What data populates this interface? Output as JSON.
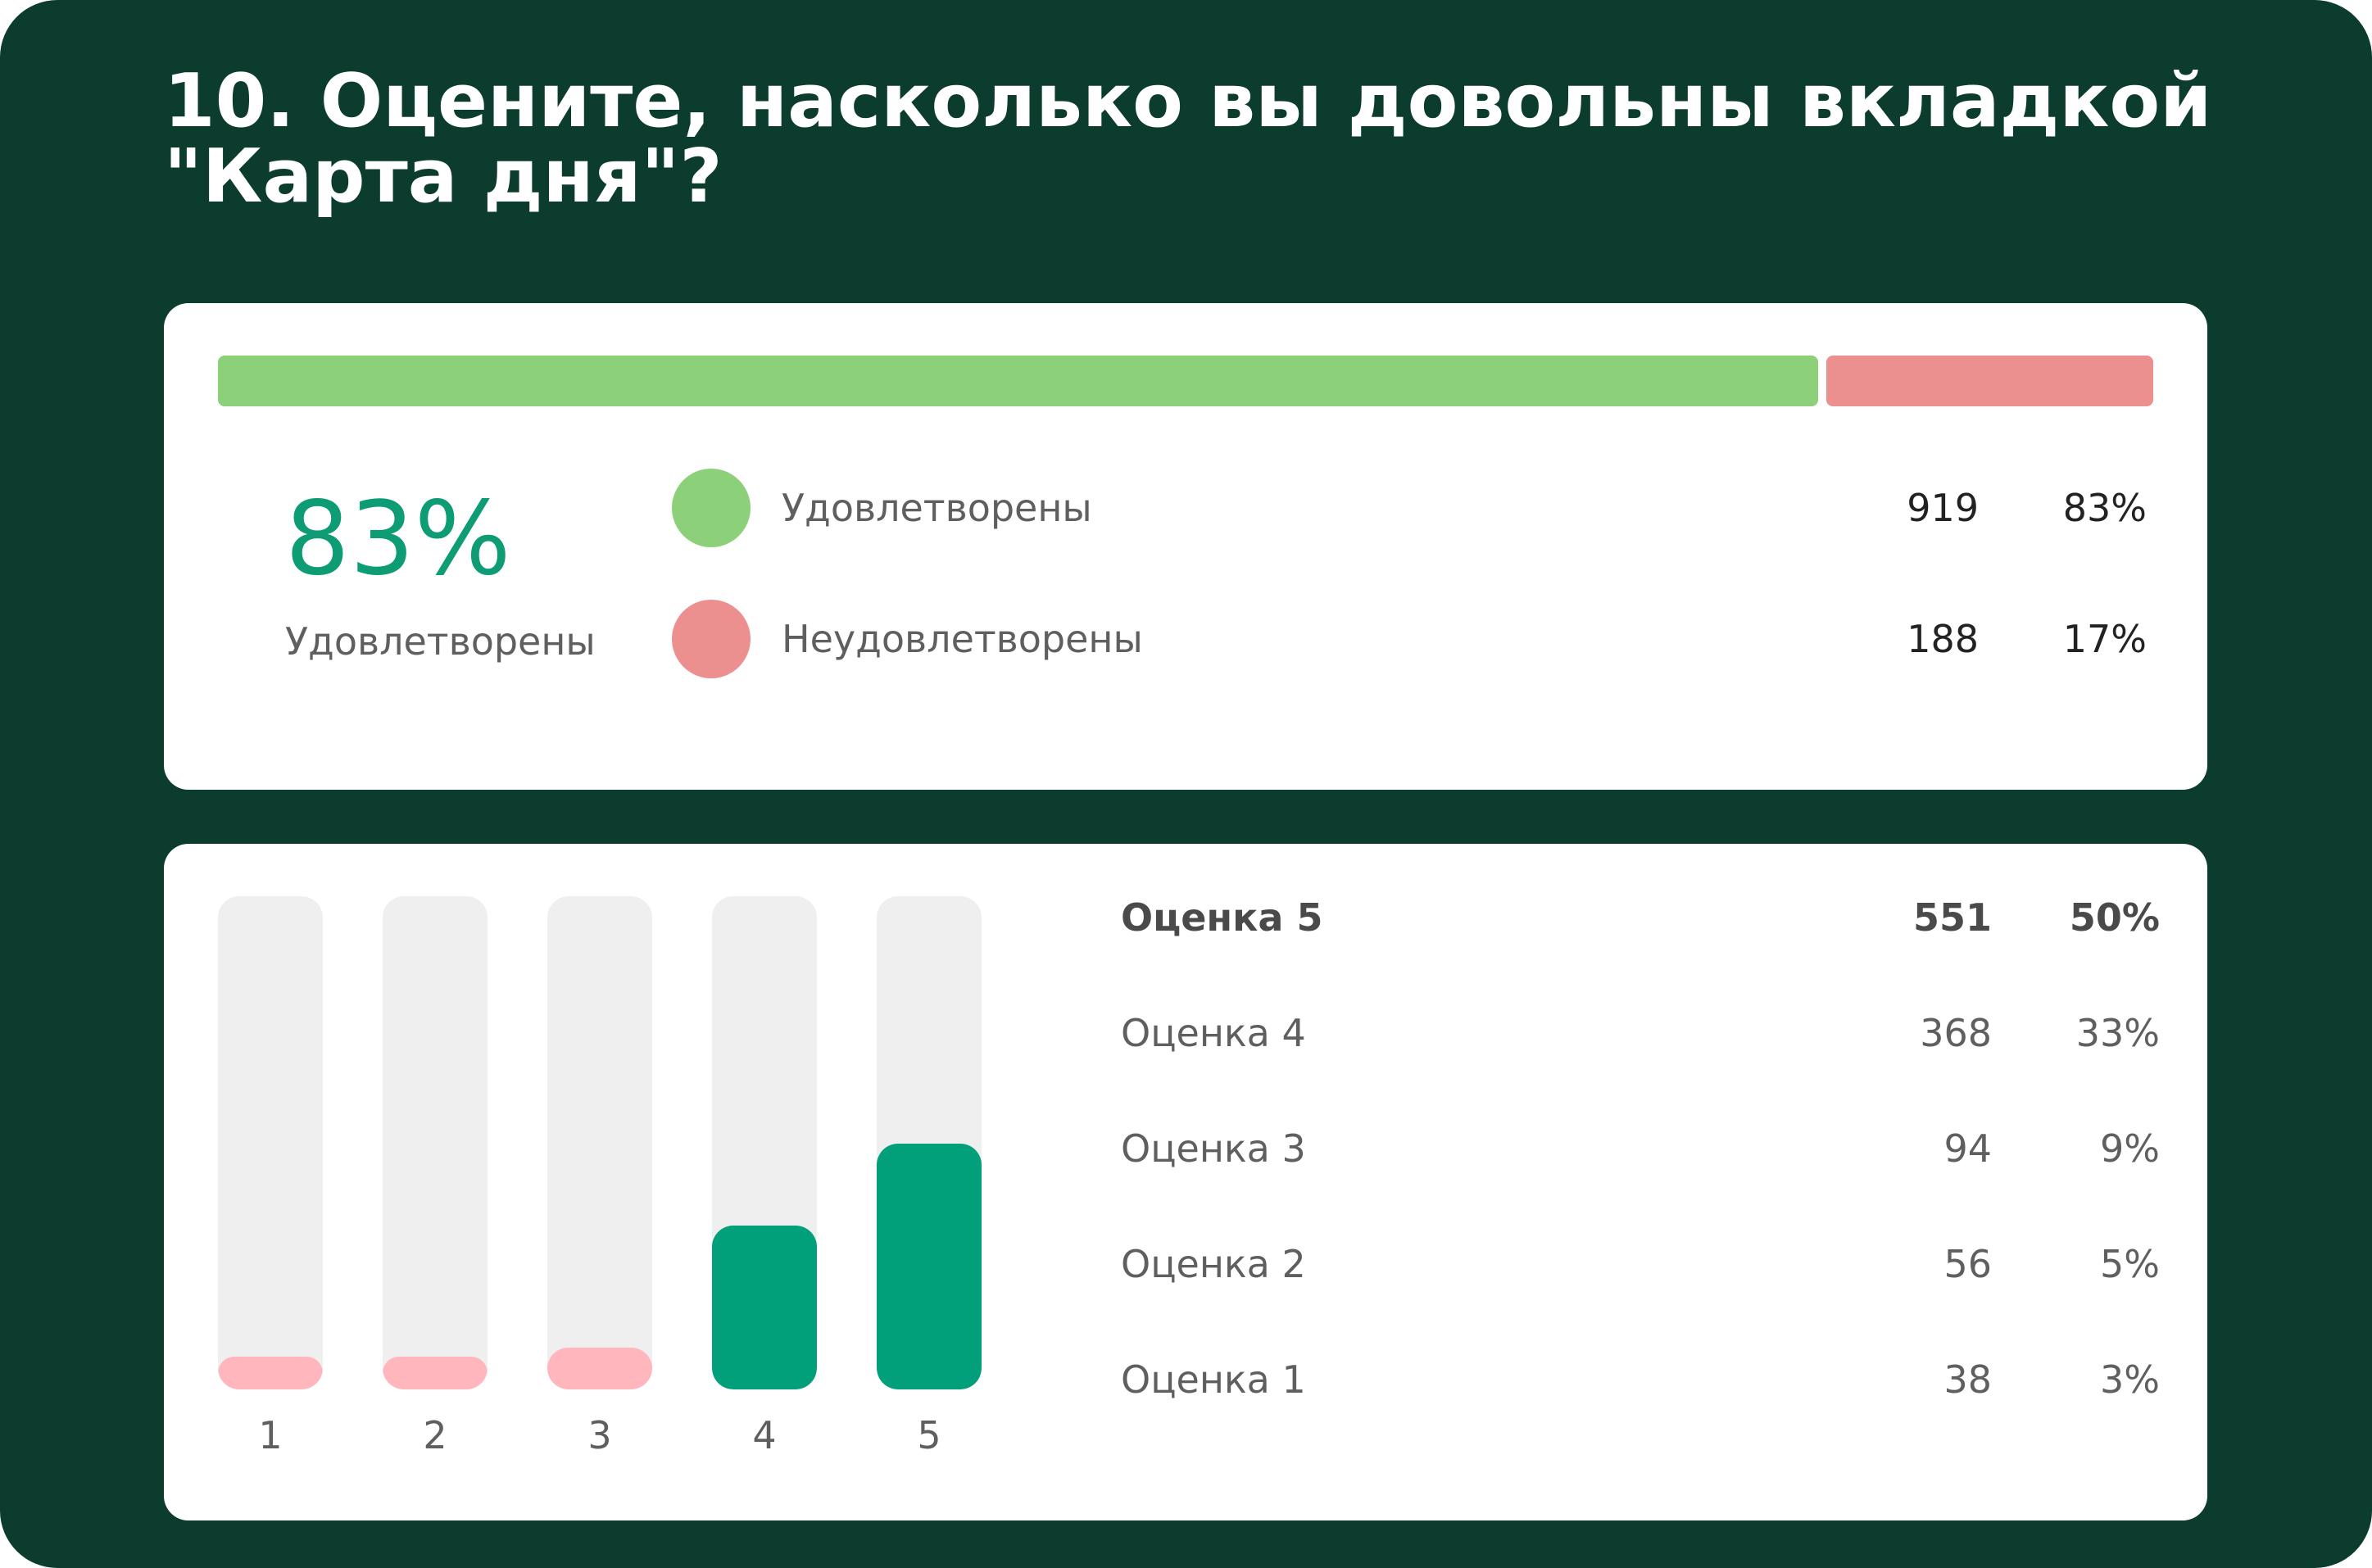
{
  "title": "10. Оцените, насколько вы довольны вкладкой \"Карта дня\"?",
  "summary": {
    "big_percent": "83%",
    "big_label": "Удовлетворены",
    "groups": [
      {
        "name": "Удовлетворены",
        "count": "919",
        "percent": "83%",
        "value": 919,
        "color": "#8dd07a"
      },
      {
        "name": "Неудовлетворены",
        "count": "188",
        "percent": "17%",
        "value": 188,
        "color": "#ec8f8f"
      }
    ]
  },
  "chart_data": [
    {
      "type": "bar",
      "orientation": "horizontal-stacked",
      "categories": [
        "Удовлетворены",
        "Неудовлетворены"
      ],
      "values": [
        919,
        188
      ],
      "percent": [
        83,
        17
      ]
    },
    {
      "type": "bar",
      "categories": [
        "1",
        "2",
        "3",
        "4",
        "5"
      ],
      "values": [
        38,
        56,
        94,
        368,
        551
      ],
      "percent": [
        3,
        5,
        9,
        33,
        50
      ],
      "ylim": [
        0,
        1107
      ],
      "colors": [
        "#ffb6bc",
        "#ffb6bc",
        "#ffb6bc",
        "#02a07a",
        "#02a07a"
      ]
    }
  ],
  "scores": [
    {
      "label": "Оценка 5",
      "count": "551",
      "percent": "50%"
    },
    {
      "label": "Оценка 4",
      "count": "368",
      "percent": "33%"
    },
    {
      "label": "Оценка 3",
      "count": "94",
      "percent": "9%"
    },
    {
      "label": "Оценка 2",
      "count": "56",
      "percent": "5%"
    },
    {
      "label": "Оценка 1",
      "count": "38",
      "percent": "3%"
    }
  ]
}
